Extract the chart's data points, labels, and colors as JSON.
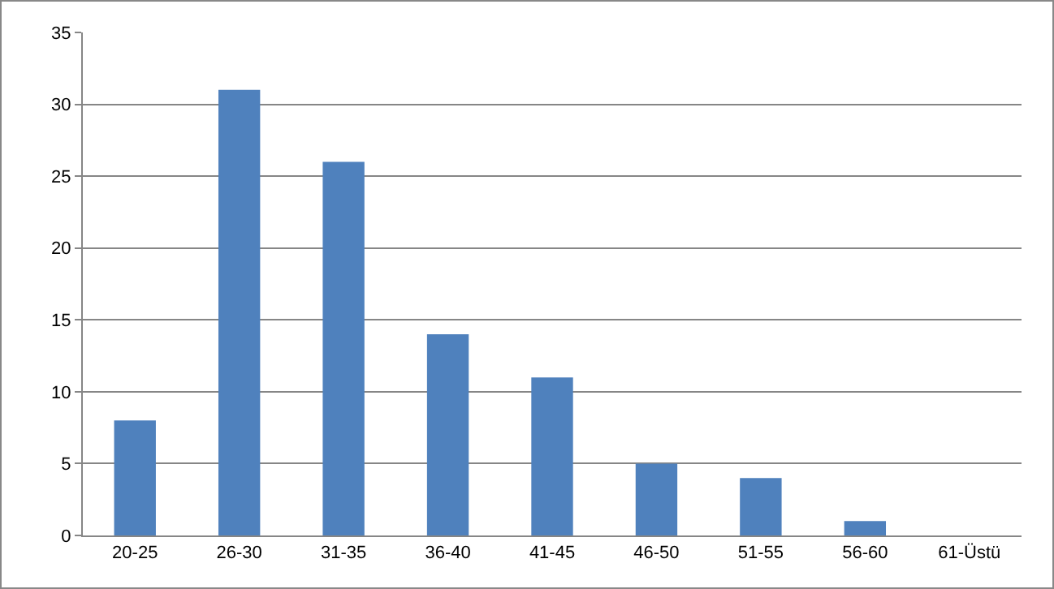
{
  "chart_data": {
    "type": "bar",
    "categories": [
      "20-25",
      "26-30",
      "31-35",
      "36-40",
      "41-45",
      "46-50",
      "51-55",
      "56-60",
      "61-Üstü"
    ],
    "values": [
      8,
      31,
      26,
      14,
      11,
      5,
      4,
      1,
      0
    ],
    "color": "#4f81bd",
    "ylim": [
      0,
      35
    ],
    "yticks": [
      0,
      5,
      10,
      15,
      20,
      25,
      30,
      35
    ],
    "grid": "y",
    "legend": false
  }
}
